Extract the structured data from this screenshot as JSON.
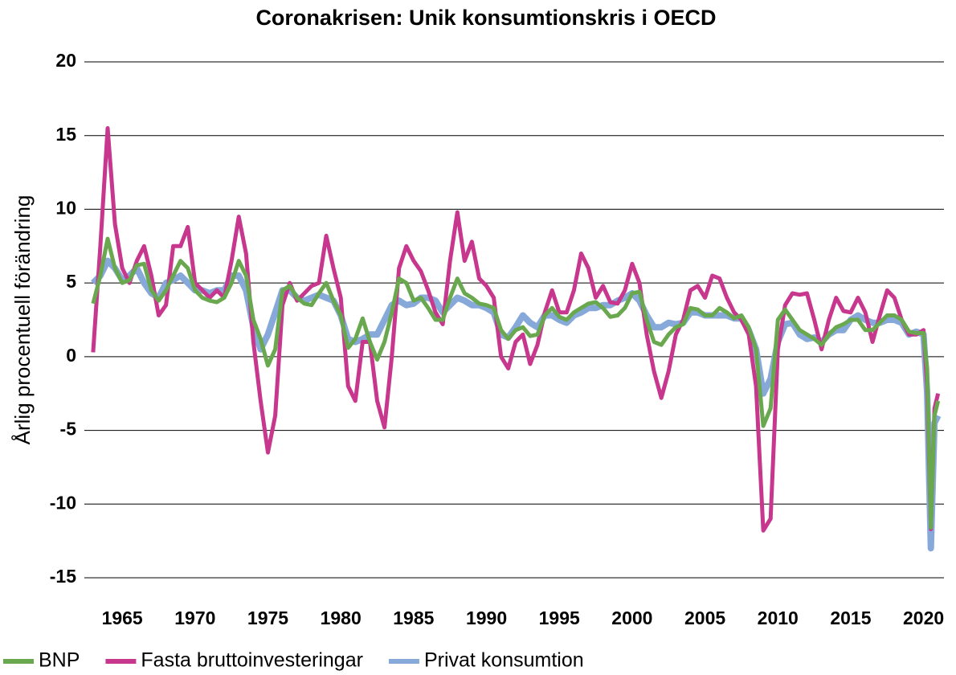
{
  "chart_data": {
    "type": "line",
    "title": "Coronakrisen: Unik konsumtionskris i OECD",
    "y_label": "Årlig procentuell förändring",
    "x": [
      1963,
      1963.5,
      1964,
      1964.5,
      1965,
      1965.5,
      1966,
      1966.5,
      1967,
      1967.5,
      1968,
      1968.5,
      1969,
      1969.5,
      1970,
      1970.5,
      1971,
      1971.5,
      1972,
      1972.5,
      1973,
      1973.5,
      1974,
      1974.5,
      1975,
      1975.5,
      1976,
      1976.5,
      1977,
      1977.5,
      1978,
      1978.5,
      1979,
      1979.5,
      1980,
      1980.5,
      1981,
      1981.5,
      1982,
      1982.5,
      1983,
      1983.5,
      1984,
      1984.5,
      1985,
      1985.5,
      1986,
      1986.5,
      1987,
      1987.5,
      1988,
      1988.5,
      1989,
      1989.5,
      1990,
      1990.5,
      1991,
      1991.5,
      1992,
      1992.5,
      1993,
      1993.5,
      1994,
      1994.5,
      1995,
      1995.5,
      1996,
      1996.5,
      1997,
      1997.5,
      1998,
      1998.5,
      1999,
      1999.5,
      2000,
      2000.5,
      2001,
      2001.5,
      2002,
      2002.5,
      2003,
      2003.5,
      2004,
      2004.5,
      2005,
      2005.5,
      2006,
      2006.5,
      2007,
      2007.5,
      2008,
      2008.5,
      2009,
      2009.5,
      2010,
      2010.5,
      2011,
      2011.5,
      2012,
      2012.5,
      2013,
      2013.5,
      2014,
      2014.5,
      2015,
      2015.5,
      2016,
      2016.5,
      2017,
      2017.5,
      2018,
      2018.5,
      2019,
      2019.5,
      2020,
      2020.25,
      2020.5,
      2020.75,
      2021
    ],
    "series": [
      {
        "name": "BNP",
        "color": "#6aa84f",
        "width": 5,
        "values": [
          3.6,
          5.5,
          8.0,
          6.0,
          5.0,
          5.2,
          6.2,
          6.3,
          4.5,
          3.8,
          4.5,
          5.5,
          6.5,
          6.0,
          4.5,
          4.0,
          3.8,
          3.7,
          4.0,
          5.0,
          6.5,
          5.5,
          2.5,
          1.2,
          -0.6,
          0.5,
          4.5,
          4.8,
          4.0,
          3.6,
          3.5,
          4.3,
          5.0,
          3.8,
          2.8,
          0.6,
          1.2,
          2.6,
          1.0,
          -0.2,
          1.0,
          3.0,
          5.3,
          5.0,
          3.8,
          4.0,
          3.3,
          2.5,
          2.5,
          4.0,
          5.3,
          4.3,
          4.0,
          3.6,
          3.5,
          3.3,
          1.8,
          1.2,
          1.8,
          2.0,
          1.4,
          1.5,
          2.8,
          3.3,
          2.7,
          2.5,
          3.0,
          3.3,
          3.6,
          3.7,
          3.3,
          2.7,
          2.8,
          3.3,
          4.3,
          4.4,
          2.5,
          1.0,
          0.8,
          1.5,
          2.0,
          2.2,
          3.3,
          3.2,
          2.8,
          2.8,
          3.3,
          3.0,
          2.6,
          2.8,
          2.0,
          0.5,
          -4.7,
          -3.5,
          2.5,
          3.2,
          2.5,
          1.8,
          1.5,
          1.2,
          0.8,
          1.5,
          2.0,
          2.2,
          2.5,
          2.5,
          1.8,
          1.8,
          2.3,
          2.8,
          2.8,
          2.5,
          1.7,
          1.6,
          1.6,
          -0.8,
          -11.6,
          -4.0,
          -3.0
        ]
      },
      {
        "name": "Fasta bruttoinvesteringar",
        "color": "#c6378d",
        "width": 5,
        "values": [
          0.3,
          7.5,
          15.5,
          9.0,
          6.0,
          5.0,
          6.5,
          7.5,
          5.5,
          2.8,
          3.5,
          7.5,
          7.5,
          8.8,
          5.0,
          4.5,
          4.0,
          4.5,
          4.0,
          6.5,
          9.5,
          7.0,
          1.0,
          -3.0,
          -6.5,
          -4.0,
          3.5,
          5.0,
          3.8,
          4.3,
          4.8,
          5.0,
          8.2,
          6.0,
          4.0,
          -2.0,
          -3.0,
          1.0,
          1.0,
          -3.0,
          -4.8,
          0.0,
          6.0,
          7.5,
          6.5,
          5.8,
          4.5,
          3.0,
          2.2,
          6.5,
          9.8,
          6.5,
          7.8,
          5.3,
          4.8,
          4.0,
          0.0,
          -0.8,
          1.0,
          1.5,
          -0.5,
          0.8,
          3.0,
          4.5,
          3.0,
          3.0,
          4.5,
          7.0,
          6.0,
          4.0,
          4.8,
          3.7,
          3.6,
          4.5,
          6.3,
          5.0,
          1.5,
          -1.0,
          -2.8,
          -1.0,
          1.5,
          2.5,
          4.5,
          4.8,
          4.0,
          5.5,
          5.3,
          4.0,
          3.0,
          2.5,
          1.5,
          -2.0,
          -11.8,
          -11.0,
          0.5,
          3.5,
          4.3,
          4.2,
          4.3,
          2.5,
          0.5,
          2.5,
          4.0,
          3.1,
          3.0,
          4.0,
          3.0,
          1.0,
          2.8,
          4.5,
          4.0,
          2.5,
          1.5,
          1.5,
          1.8,
          -2.0,
          -11.7,
          -3.5,
          -2.5
        ]
      },
      {
        "name": "Privat konsumtion",
        "color": "#86a9d9",
        "width": 8,
        "values": [
          5.0,
          5.5,
          6.5,
          6.0,
          5.2,
          5.5,
          6.0,
          5.0,
          4.3,
          4.0,
          5.0,
          5.2,
          5.5,
          5.0,
          4.5,
          4.5,
          4.3,
          4.5,
          4.5,
          5.5,
          5.5,
          4.5,
          2.0,
          0.5,
          1.5,
          3.0,
          4.5,
          4.5,
          4.0,
          3.8,
          4.0,
          4.2,
          4.0,
          3.8,
          2.8,
          1.2,
          1.0,
          1.2,
          1.5,
          1.5,
          2.5,
          3.5,
          3.8,
          3.5,
          3.6,
          4.0,
          4.0,
          3.8,
          3.0,
          3.5,
          4.0,
          3.8,
          3.5,
          3.5,
          3.3,
          3.0,
          1.5,
          1.3,
          2.0,
          2.8,
          2.3,
          2.0,
          2.8,
          2.8,
          2.5,
          2.3,
          2.8,
          3.0,
          3.3,
          3.3,
          3.5,
          3.5,
          3.8,
          4.0,
          4.3,
          3.8,
          2.8,
          2.0,
          2.0,
          2.3,
          2.2,
          2.3,
          3.0,
          3.0,
          2.8,
          2.8,
          2.8,
          2.8,
          2.6,
          2.6,
          1.8,
          0.5,
          -2.5,
          -1.5,
          1.0,
          2.2,
          2.3,
          1.5,
          1.2,
          1.3,
          1.0,
          1.5,
          1.8,
          1.8,
          2.5,
          2.8,
          2.5,
          2.3,
          2.3,
          2.5,
          2.5,
          2.3,
          1.5,
          1.7,
          1.5,
          -2.5,
          -13.0,
          -4.5,
          -4.0
        ]
      }
    ],
    "xlim": [
      1962.4,
      2021.4
    ],
    "xticks": [
      1965,
      1970,
      1975,
      1980,
      1985,
      1990,
      1995,
      2000,
      2005,
      2010,
      2015,
      2020
    ],
    "ylim": [
      -15,
      20
    ],
    "yticks": [
      20,
      15,
      10,
      5,
      0,
      -5,
      -10,
      -15
    ],
    "grid": true,
    "legend": "bottom"
  }
}
